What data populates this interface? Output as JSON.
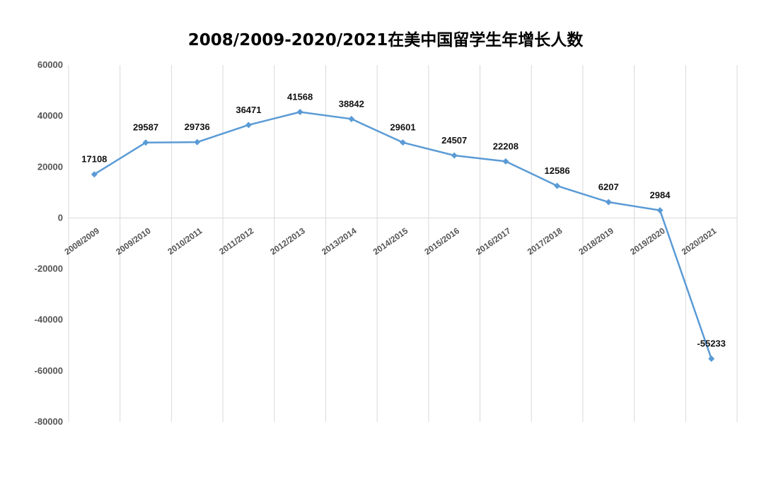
{
  "chart_data": {
    "type": "line",
    "title": "2008/2009-2020/2021在美中国留学生年增长人数",
    "xlabel": "",
    "ylabel": "",
    "categories": [
      "2008/2009",
      "2009/2010",
      "2010/2011",
      "2011/2012",
      "2012/2013",
      "2013/2014",
      "2014/2015",
      "2015/2016",
      "2016/2017",
      "2017/2018",
      "2018/2019",
      "2019/2020",
      "2020/2021"
    ],
    "series": [
      {
        "values": [
          17108,
          29587,
          29736,
          36471,
          41568,
          38842,
          29601,
          24507,
          22208,
          12586,
          6207,
          2984,
          -55233
        ],
        "color": "#5b9bd5",
        "marker": "diamond"
      }
    ],
    "data_labels": [
      "17108",
      "29587",
      "29736",
      "36471",
      "41568",
      "38842",
      "29601",
      "24507",
      "22208",
      "12586",
      "6207",
      "2984",
      "-55233"
    ],
    "ylim": [
      -80000,
      60000
    ],
    "yticks": [
      60000,
      40000,
      20000,
      0,
      -20000,
      -40000,
      -60000,
      -80000
    ],
    "ytick_labels": [
      "60000",
      "40000",
      "20000",
      "0",
      "-20000",
      "-40000",
      "-60000",
      "-80000"
    ],
    "grid": {
      "vertical": true,
      "horizontal": false,
      "zero_line": true
    },
    "gridline_color": "#d9d9d9",
    "legend": "none"
  }
}
